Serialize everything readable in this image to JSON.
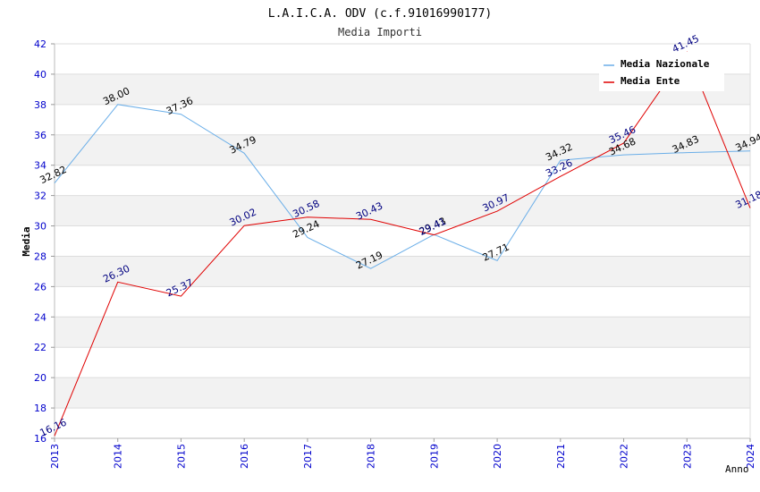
{
  "chart_data": {
    "type": "line",
    "title": "L.A.I.C.A. ODV (c.f.91016990177)",
    "subtitle": "Media Importi",
    "xlabel": "Anno",
    "ylabel": "Media",
    "x": [
      "2013",
      "2014",
      "2015",
      "2016",
      "2017",
      "2018",
      "2019",
      "2020",
      "2021",
      "2022",
      "2023",
      "2024"
    ],
    "ylim": [
      16,
      42
    ],
    "yticks": [
      16,
      18,
      20,
      22,
      24,
      26,
      28,
      30,
      32,
      34,
      36,
      38,
      40,
      42
    ],
    "grid": true,
    "legend_position": "top-right",
    "series": [
      {
        "name": "Media Nazionale",
        "color": "#6aaee8",
        "label_color": "#000000",
        "values": [
          32.82,
          38.0,
          37.36,
          34.79,
          29.24,
          27.19,
          29.43,
          27.71,
          34.32,
          34.68,
          34.83,
          34.94
        ],
        "labels": [
          "32.82",
          "38.00",
          "37.36",
          "34.79",
          "29.24",
          "27.19",
          "29.43",
          "27.71",
          "34.32",
          "34.68",
          "34.83",
          "34.94"
        ]
      },
      {
        "name": "Media Ente",
        "color": "#e00000",
        "label_color": "#000080",
        "values": [
          16.16,
          26.3,
          25.37,
          30.02,
          30.58,
          30.43,
          29.41,
          30.97,
          33.26,
          35.46,
          41.45,
          31.18
        ],
        "labels": [
          "16.16",
          "26.30",
          "25.37",
          "30.02",
          "30.58",
          "30.43",
          "29.41",
          "30.97",
          "33.26",
          "35.46",
          "41.45",
          "31.18"
        ]
      }
    ]
  },
  "colors": {
    "axis_text": "#0000cc",
    "band": "#f2f2f2",
    "grid": "#dddddd",
    "title": "#000000"
  }
}
